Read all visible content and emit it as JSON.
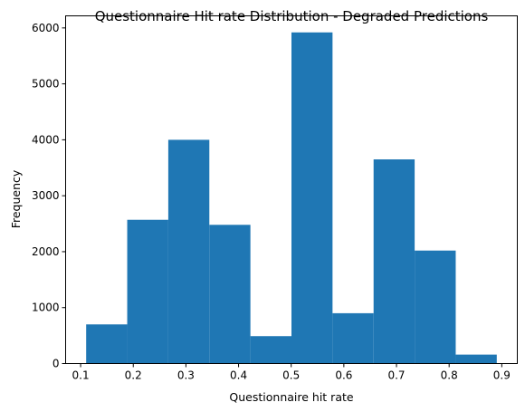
{
  "chart_data": {
    "type": "bar",
    "title": "Questionnaire Hit rate Distribution - Degraded Predictions",
    "xlabel": "Questionnaire hit rate",
    "ylabel": "Frequency",
    "bins": [
      {
        "x0": 0.1105,
        "x1": 0.1885,
        "count": 700
      },
      {
        "x0": 0.1885,
        "x1": 0.2665,
        "count": 2570
      },
      {
        "x0": 0.2665,
        "x1": 0.3445,
        "count": 4000
      },
      {
        "x0": 0.3445,
        "x1": 0.4225,
        "count": 2480
      },
      {
        "x0": 0.4225,
        "x1": 0.5005,
        "count": 490
      },
      {
        "x0": 0.5005,
        "x1": 0.5785,
        "count": 5920
      },
      {
        "x0": 0.5785,
        "x1": 0.6565,
        "count": 900
      },
      {
        "x0": 0.6565,
        "x1": 0.7345,
        "count": 3650
      },
      {
        "x0": 0.7345,
        "x1": 0.8125,
        "count": 2020
      },
      {
        "x0": 0.8125,
        "x1": 0.8905,
        "count": 160
      }
    ],
    "xlim": [
      0.0715,
      0.9295
    ],
    "ylim": [
      0,
      6216
    ],
    "xticks": [
      "0.1",
      "0.2",
      "0.3",
      "0.4",
      "0.5",
      "0.6",
      "0.7",
      "0.8",
      "0.9"
    ],
    "yticks": [
      "0",
      "1000",
      "2000",
      "3000",
      "4000",
      "5000",
      "6000"
    ],
    "bar_color": "#1f77b4",
    "grid": false,
    "legend": "none"
  }
}
